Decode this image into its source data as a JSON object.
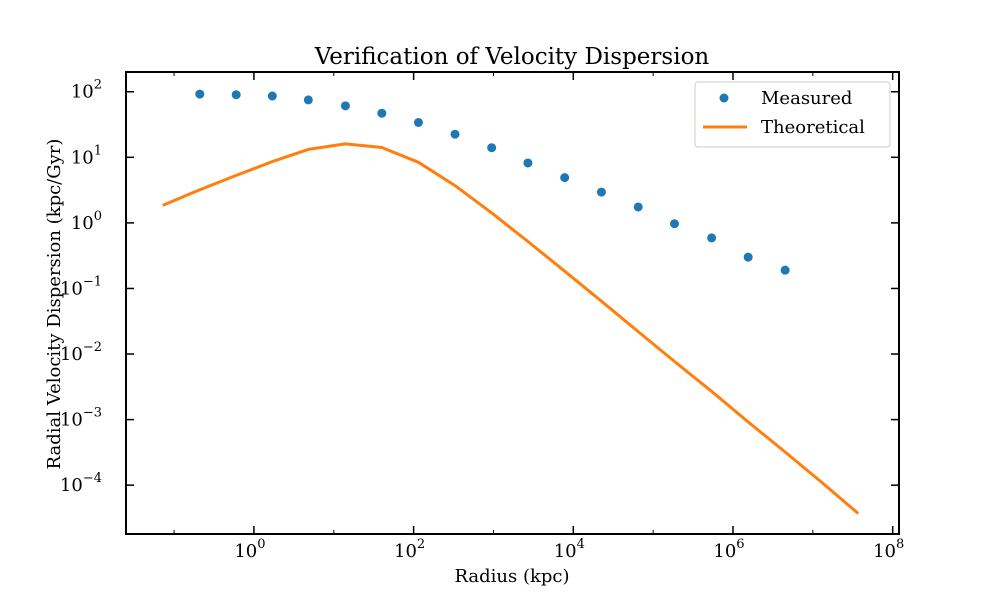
{
  "chart_data": {
    "type": "line",
    "title": "Verification of Velocity Dispersion",
    "xlabel": "Radius (kpc)",
    "ylabel": "Radial Velocity Dispersion (kpc/Gyr)",
    "xscale": "log",
    "yscale": "log",
    "xlim": [
      0.025,
      120000000
    ],
    "ylim": [
      1.8e-05,
      200
    ],
    "x_ticks": [
      {
        "base": "10",
        "exp": "0",
        "value": 1
      },
      {
        "base": "10",
        "exp": "2",
        "value": 100
      },
      {
        "base": "10",
        "exp": "4",
        "value": 10000
      },
      {
        "base": "10",
        "exp": "6",
        "value": 1000000
      },
      {
        "base": "10",
        "exp": "8",
        "value": 100000000
      }
    ],
    "y_ticks": [
      {
        "base": "10",
        "exp": "2",
        "value": 100
      },
      {
        "base": "10",
        "exp": "1",
        "value": 10
      },
      {
        "base": "10",
        "exp": "0",
        "value": 1
      },
      {
        "base": "10",
        "exp": "−1",
        "value": 0.1
      },
      {
        "base": "10",
        "exp": "−2",
        "value": 0.01
      },
      {
        "base": "10",
        "exp": "−3",
        "value": 0.001
      },
      {
        "base": "10",
        "exp": "−4",
        "value": 0.0001
      }
    ],
    "grid": false,
    "legend_position": "top-right",
    "series": [
      {
        "name": "Measured",
        "style": "scatter",
        "color": "#1f77b4",
        "points": [
          {
            "x": 0.21,
            "y": 92
          },
          {
            "x": 0.6,
            "y": 90
          },
          {
            "x": 1.7,
            "y": 86
          },
          {
            "x": 4.8,
            "y": 75
          },
          {
            "x": 14,
            "y": 61
          },
          {
            "x": 40,
            "y": 47
          },
          {
            "x": 115,
            "y": 34
          },
          {
            "x": 330,
            "y": 22.5
          },
          {
            "x": 950,
            "y": 14
          },
          {
            "x": 2700,
            "y": 8.2
          },
          {
            "x": 7800,
            "y": 4.9
          },
          {
            "x": 22500,
            "y": 2.95
          },
          {
            "x": 65000,
            "y": 1.75
          },
          {
            "x": 185000,
            "y": 0.97
          },
          {
            "x": 540000,
            "y": 0.59
          },
          {
            "x": 1550000,
            "y": 0.3
          },
          {
            "x": 4500000,
            "y": 0.19
          }
        ]
      },
      {
        "name": "Theoretical",
        "style": "line",
        "color": "#ff7f0e",
        "points": [
          {
            "x": 0.072,
            "y": 1.85
          },
          {
            "x": 0.21,
            "y": 3.2
          },
          {
            "x": 0.6,
            "y": 5.3
          },
          {
            "x": 1.7,
            "y": 8.6
          },
          {
            "x": 4.8,
            "y": 13.2
          },
          {
            "x": 14,
            "y": 16
          },
          {
            "x": 40,
            "y": 14.1
          },
          {
            "x": 115,
            "y": 8.4
          },
          {
            "x": 330,
            "y": 3.7
          },
          {
            "x": 950,
            "y": 1.42
          },
          {
            "x": 2700,
            "y": 0.52
          },
          {
            "x": 7800,
            "y": 0.183
          },
          {
            "x": 22500,
            "y": 0.064
          },
          {
            "x": 65000,
            "y": 0.022
          },
          {
            "x": 185000,
            "y": 0.0077
          },
          {
            "x": 540000,
            "y": 0.0027
          },
          {
            "x": 1550000,
            "y": 0.00092
          },
          {
            "x": 4500000,
            "y": 0.00032
          },
          {
            "x": 13000000,
            "y": 0.00011
          },
          {
            "x": 37000000,
            "y": 3.7e-05
          }
        ]
      }
    ]
  }
}
